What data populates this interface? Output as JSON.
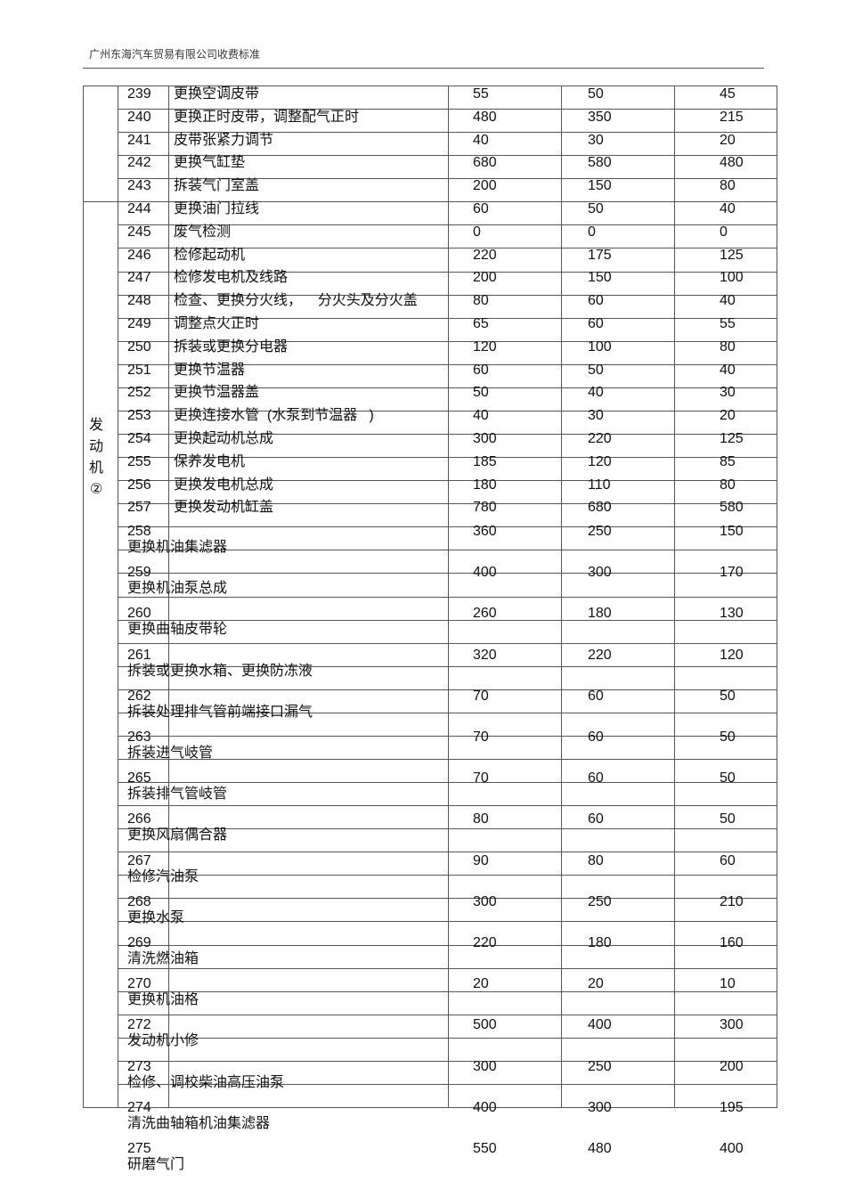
{
  "header": {
    "title": "广州东海汽车贸易有限公司收费标准"
  },
  "group_label": "发动机②",
  "rows": [
    {
      "no": "239",
      "name": "更换空调皮带",
      "a": "55",
      "b": "50",
      "c": "45"
    },
    {
      "no": "240",
      "name": "更换正时皮带，调整配气正时",
      "a": "480",
      "b": "350",
      "c": "215"
    },
    {
      "no": "241",
      "name": "皮带张紧力调节",
      "a": "40",
      "b": "30",
      "c": "20"
    },
    {
      "no": "242",
      "name": "更换气缸垫",
      "a": "680",
      "b": "580",
      "c": "480"
    },
    {
      "no": "243",
      "name": "拆装气门室盖",
      "a": "200",
      "b": "150",
      "c": "80"
    },
    {
      "no": "244",
      "name": "更换油门拉线",
      "a": "60",
      "b": "50",
      "c": "40"
    },
    {
      "no": "245",
      "name": "废气检测",
      "a": "0",
      "b": "0",
      "c": "0"
    },
    {
      "no": "246",
      "name": "检修起动机",
      "a": "220",
      "b": "175",
      "c": "125"
    },
    {
      "no": "247",
      "name": "检修发电机及线路",
      "a": "200",
      "b": "150",
      "c": "100"
    },
    {
      "no": "248",
      "name": "检查、更换分火线，    分火头及分火盖",
      "a": "80",
      "b": "60",
      "c": "40"
    },
    {
      "no": "249",
      "name": "调整点火正时",
      "a": "65",
      "b": "60",
      "c": "55"
    },
    {
      "no": "250",
      "name": "拆装或更换分电器",
      "a": "120",
      "b": "100",
      "c": "80"
    },
    {
      "no": "251",
      "name": "更换节温器",
      "a": "60",
      "b": "50",
      "c": "40"
    },
    {
      "no": "252",
      "name": "更换节温器盖",
      "a": "50",
      "b": "40",
      "c": "30"
    },
    {
      "no": "253",
      "name": "更换连接水管  (水泵到节温器   )",
      "a": "40",
      "b": "30",
      "c": "20"
    },
    {
      "no": "254",
      "name": "更换起动机总成",
      "a": "300",
      "b": "220",
      "c": "125"
    },
    {
      "no": "255",
      "name": "保养发电机",
      "a": "185",
      "b": "120",
      "c": "85"
    },
    {
      "no": "256",
      "name": "更换发电机总成",
      "a": "180",
      "b": "110",
      "c": "80"
    },
    {
      "no": "257",
      "name": "更换发动机缸盖",
      "a": "780",
      "b": "680",
      "c": "580"
    },
    {
      "no": "258",
      "name": "更换机油集滤器",
      "a": "360",
      "b": "250",
      "c": "150"
    },
    {
      "no": "259",
      "name": "更换机油泵总成",
      "a": "400",
      "b": "300",
      "c": "170"
    },
    {
      "no": "260",
      "name": "更换曲轴皮带轮",
      "a": "260",
      "b": "180",
      "c": "130"
    },
    {
      "no": "261",
      "name": "拆装或更换水箱、更换防冻液",
      "a": "320",
      "b": "220",
      "c": "120"
    },
    {
      "no": "262",
      "name": "拆装处理排气管前端接口漏气",
      "a": "70",
      "b": "60",
      "c": "50"
    },
    {
      "no": "263",
      "name": "拆装进气岐管",
      "a": "70",
      "b": "60",
      "c": "50"
    },
    {
      "no": "265",
      "name": "拆装排气管岐管",
      "a": "70",
      "b": "60",
      "c": "50"
    },
    {
      "no": "266",
      "name": "更换风扇偶合器",
      "a": "80",
      "b": "60",
      "c": "50"
    },
    {
      "no": "267",
      "name": "检修汽油泵",
      "a": "90",
      "b": "80",
      "c": "60"
    },
    {
      "no": "268",
      "name": "更换水泵",
      "a": "300",
      "b": "250",
      "c": "210"
    },
    {
      "no": "269",
      "name": "清洗燃油箱",
      "a": "220",
      "b": "180",
      "c": "160"
    },
    {
      "no": "270",
      "name": "更换机油格",
      "a": "20",
      "b": "20",
      "c": "10"
    },
    {
      "no": "272",
      "name": "发动机小修",
      "a": "500",
      "b": "400",
      "c": "300"
    },
    {
      "no": "273",
      "name": "检修、调校柴油高压油泵",
      "a": "300",
      "b": "250",
      "c": "200"
    },
    {
      "no": "274",
      "name": "清洗曲轴箱机油集滤器",
      "a": "400",
      "b": "300",
      "c": "195"
    },
    {
      "no": "275",
      "name": "研磨气门",
      "a": "550",
      "b": "480",
      "c": "400"
    }
  ]
}
